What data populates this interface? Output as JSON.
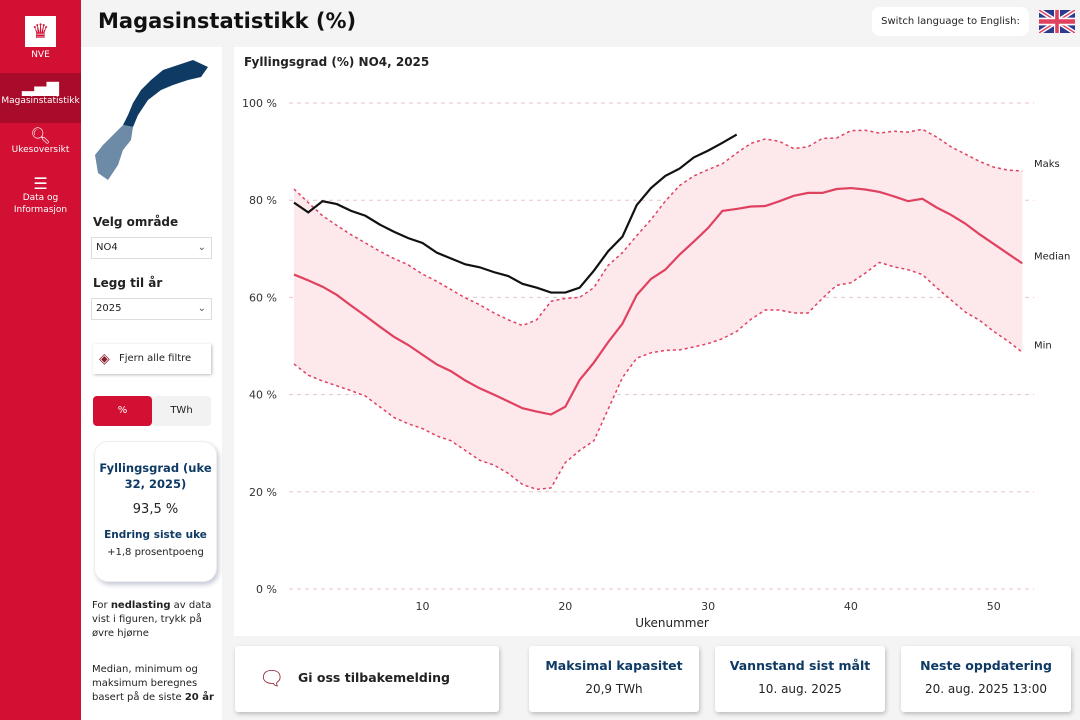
{
  "app": {
    "title": "Magasinstatistikk (%)",
    "logo_text": "NVE",
    "language_button": "Switch language to English:"
  },
  "sidebar": {
    "items": [
      {
        "label": "Magasinstatistikk",
        "active": true
      },
      {
        "label": "Ukesoversikt"
      },
      {
        "label": "Data og Informasjon"
      }
    ]
  },
  "filters": {
    "area_label": "Velg område",
    "area_value": "NO4",
    "year_label": "Legg til år",
    "year_value": "2025",
    "clear_label": "Fjern alle filtre",
    "unit_options": [
      "%",
      "TWh"
    ],
    "unit_selected": "%"
  },
  "kpi": {
    "title": "Fyllingsgrad (uke 32, 2025)",
    "value": "93,5 %",
    "change_title": "Endring siste uke",
    "change_value": "+1,8 prosentpoeng"
  },
  "notes": {
    "download_pre": "For ",
    "download_bold": "nedlasting",
    "download_post": " av data vist i figuren, trykk på øvre hjørne",
    "stats_pre": "Median, minimum og maksimum beregnes basert på de siste ",
    "stats_bold": "20 år"
  },
  "bottom": {
    "feedback": "Gi oss tilbakemelding",
    "cards": [
      {
        "title": "Maksimal kapasitet",
        "value": "20,9 TWh"
      },
      {
        "title": "Vannstand sist målt",
        "value": "10. aug. 2025"
      },
      {
        "title": "Neste oppdatering",
        "value": "20. aug. 2025 13:00"
      }
    ]
  },
  "colors": {
    "brand": "#d21034",
    "median": "#e0415f",
    "band": "#fde8ec",
    "current": "#111111"
  },
  "chart_data": {
    "type": "line",
    "title": "Fyllingsgrad (%) NO4, 2025",
    "xlabel": "Ukenummer",
    "ylabel": "",
    "xlim": [
      1,
      52
    ],
    "ylim": [
      0,
      100
    ],
    "xticks": [
      10,
      20,
      30,
      40,
      50
    ],
    "yticks": [
      {
        "v": 0,
        "label": "0 %"
      },
      {
        "v": 20,
        "label": "20 %"
      },
      {
        "v": 40,
        "label": "40 %"
      },
      {
        "v": 60,
        "label": "60 %"
      },
      {
        "v": 80,
        "label": "80 %"
      },
      {
        "v": 100,
        "label": "100 %"
      }
    ],
    "series": [
      {
        "name": "2025",
        "values": [
          79.5,
          77.5,
          79.8,
          79.2,
          77.8,
          76.8,
          75,
          73.5,
          72.2,
          71.2,
          69.2,
          68,
          66.8,
          66.2,
          65.2,
          64.4,
          62.8,
          62,
          61,
          61,
          62,
          65.5,
          69.5,
          72.5,
          79,
          82.5,
          85,
          86.5,
          88.8,
          90.2,
          91.8,
          93.5
        ]
      },
      {
        "name": "Median",
        "values": [
          64.7,
          63.5,
          62.2,
          60.5,
          58.3,
          56.2,
          54,
          51.9,
          50.2,
          48.2,
          46.2,
          44.8,
          42.9,
          41.3,
          40,
          38.6,
          37.2,
          36.5,
          35.9,
          37.5,
          43,
          46.6,
          50.8,
          54.6,
          60.5,
          63.8,
          65.7,
          68.8,
          71.5,
          74.3,
          77.8,
          78.2,
          78.7,
          78.8,
          79.8,
          80.9,
          81.5,
          81.5,
          82.3,
          82.5,
          82.2,
          81.7,
          80.8,
          79.8,
          80.3,
          78.5,
          77,
          75.2,
          73,
          71,
          69,
          67
        ]
      },
      {
        "name": "Maks",
        "values": [
          82.3,
          79.5,
          76.8,
          74.8,
          72.9,
          71.2,
          69.5,
          68,
          66.7,
          64.8,
          63.3,
          61.6,
          59.9,
          58.5,
          56.8,
          55.4,
          54.2,
          55.4,
          59.2,
          59.8,
          60,
          62,
          66.6,
          69.2,
          72.7,
          76,
          79.8,
          83,
          85,
          86.3,
          87.5,
          89.7,
          91.7,
          92.6,
          92.1,
          90.6,
          91,
          92.7,
          92.8,
          94.3,
          94.4,
          93.8,
          94.2,
          94,
          94.6,
          93,
          91,
          89.5,
          88,
          86.8,
          86.2,
          86
        ]
      },
      {
        "name": "Min",
        "values": [
          46.3,
          44,
          42.8,
          41.8,
          40.8,
          39.7,
          37.5,
          35.3,
          34,
          33,
          31.5,
          30.5,
          28.5,
          26.5,
          25.5,
          23.8,
          21.5,
          20.5,
          20.8,
          26,
          28.5,
          30.5,
          37,
          43.5,
          47.5,
          48.6,
          49.1,
          49.2,
          49.8,
          50.5,
          51.5,
          53,
          55.5,
          57.4,
          57.4,
          56.8,
          56.8,
          59.8,
          62.5,
          63,
          65,
          67.2,
          66.3,
          65.7,
          64.7,
          62,
          59.5,
          57,
          55.3,
          53,
          51,
          48.7
        ]
      }
    ]
  }
}
